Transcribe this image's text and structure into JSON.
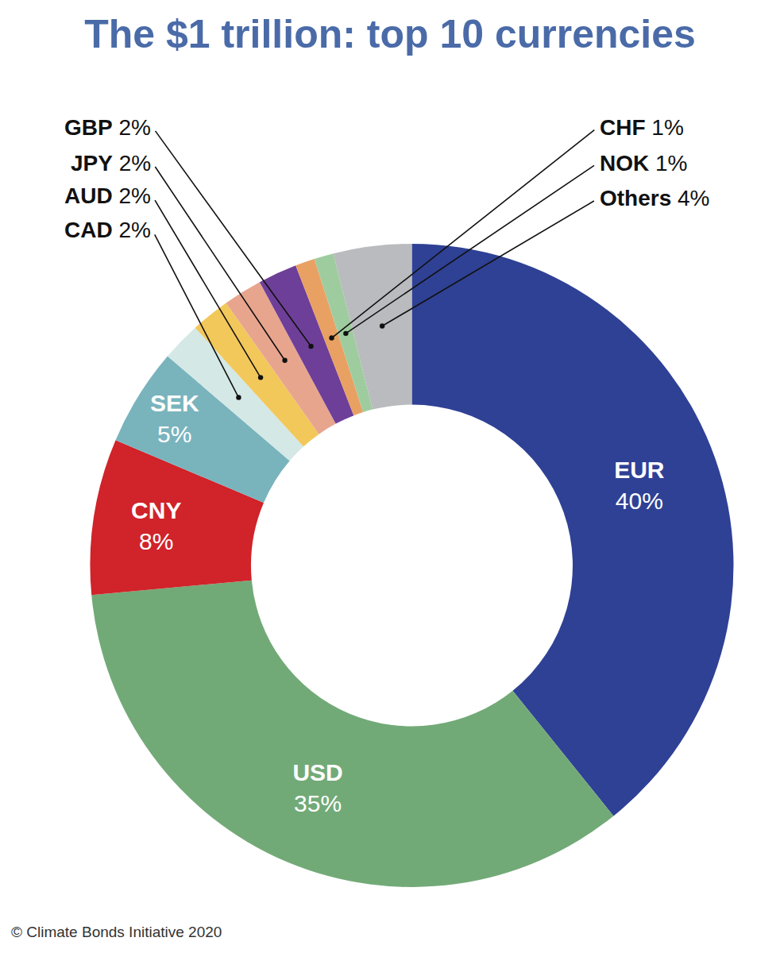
{
  "chart_data": {
    "type": "donut",
    "title": "The $1 trillion: top 10 currencies",
    "source": "© Climate Bonds Initiative 2020",
    "categories": [
      "EUR",
      "USD",
      "CNY",
      "SEK",
      "CAD",
      "AUD",
      "JPY",
      "GBP",
      "CHF",
      "NOK",
      "Others"
    ],
    "values": [
      40,
      35,
      8,
      5,
      2,
      2,
      2,
      2,
      1,
      1,
      4
    ],
    "value_labels": [
      "40%",
      "35%",
      "8%",
      "5%",
      "2%",
      "2%",
      "2%",
      "2%",
      "1%",
      "1%",
      "4%"
    ],
    "colors": [
      "#2f4195",
      "#72aa77",
      "#d0232a",
      "#79b4bd",
      "#d4e8e6",
      "#f2c85b",
      "#e8a58e",
      "#6e3f98",
      "#e8a163",
      "#9fcc9f",
      "#b9bbbe"
    ],
    "data_labels": true
  }
}
